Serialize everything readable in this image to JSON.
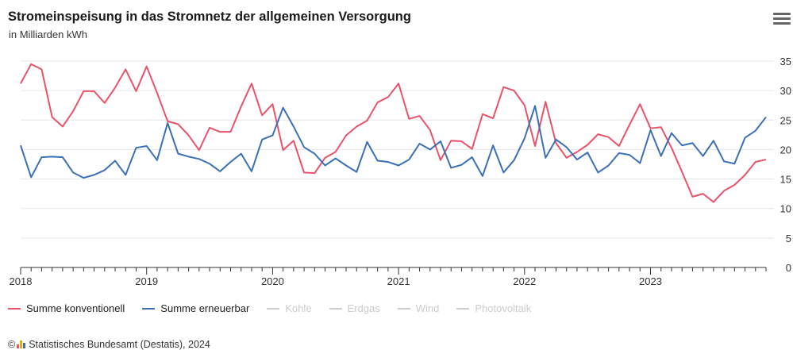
{
  "header": {
    "title": "Stromeinspeisung in das Stromnetz der allgemeinen Versorgung",
    "subtitle": "in Milliarden kWh",
    "menu_icon": "hamburger-menu-icon"
  },
  "legend": [
    {
      "label": "Summe konventionell",
      "color": "#e9536a",
      "visible": true
    },
    {
      "label": "Summe erneuerbar",
      "color": "#3b6fb6",
      "visible": true
    },
    {
      "label": "Kohle",
      "color": "#cccccc",
      "visible": false
    },
    {
      "label": "Erdgas",
      "color": "#cccccc",
      "visible": false
    },
    {
      "label": "Wind",
      "color": "#cccccc",
      "visible": false
    },
    {
      "label": "Photovoltaik",
      "color": "#cccccc",
      "visible": false
    }
  ],
  "source": {
    "prefix": "©",
    "text": "Statistisches Bundesamt (Destatis), 2024",
    "logo_colors": [
      "#e9536a",
      "#f2a900",
      "#3b6fb6"
    ]
  },
  "chart_data": {
    "type": "line",
    "x_start": "2018-01",
    "x_interval": "monthly",
    "xticks": [
      "2018",
      "2019",
      "2020",
      "2021",
      "2022",
      "2023"
    ],
    "yticks": [
      0,
      5,
      10,
      15,
      20,
      25,
      30,
      35
    ],
    "ylim": [
      0,
      35
    ],
    "ylabel": "",
    "xlabel": "",
    "grid": true,
    "legend_position": "bottom",
    "series": [
      {
        "name": "Summe konventionell",
        "color": "#e9536a",
        "values": [
          31.2,
          34.5,
          33.6,
          25.5,
          23.9,
          26.5,
          29.9,
          29.9,
          27.9,
          30.5,
          33.6,
          29.9,
          34.1,
          29.6,
          24.8,
          24.3,
          22.4,
          19.9,
          23.7,
          23.0,
          23.0,
          27.3,
          31.2,
          25.8,
          27.7,
          19.9,
          21.5,
          16.1,
          16.0,
          18.6,
          19.6,
          22.4,
          23.9,
          24.9,
          28.0,
          28.9,
          31.2,
          25.2,
          25.7,
          23.3,
          18.2,
          21.5,
          21.4,
          20.1,
          26.0,
          25.3,
          30.6,
          30.0,
          27.5,
          20.6,
          28.1,
          21.1,
          18.6,
          19.6,
          20.8,
          22.6,
          22.1,
          20.6,
          24.2,
          27.7,
          23.6,
          23.8,
          20.3,
          16.2,
          12.0,
          12.5,
          11.1,
          13.0,
          14.0,
          15.7,
          17.9,
          18.3
        ]
      },
      {
        "name": "Summe erneuerbar",
        "color": "#3b6fb6",
        "values": [
          20.7,
          15.3,
          18.7,
          18.8,
          18.7,
          16.1,
          15.2,
          15.7,
          16.5,
          18.1,
          15.7,
          20.3,
          20.6,
          18.2,
          24.5,
          19.3,
          18.8,
          18.4,
          17.6,
          16.3,
          17.9,
          19.3,
          16.3,
          21.7,
          22.4,
          27.1,
          23.9,
          20.4,
          19.3,
          17.3,
          18.5,
          17.3,
          16.2,
          21.3,
          18.1,
          17.9,
          17.3,
          18.3,
          21.0,
          20.0,
          21.4,
          16.9,
          17.4,
          18.7,
          15.5,
          20.7,
          16.1,
          18.2,
          21.9,
          27.4,
          18.6,
          21.7,
          20.4,
          18.3,
          19.5,
          16.1,
          17.3,
          19.4,
          19.1,
          17.7,
          23.3,
          18.9,
          22.8,
          20.7,
          21.1,
          18.9,
          21.5,
          18.0,
          17.6,
          22.0,
          23.2,
          25.5
        ]
      }
    ]
  }
}
